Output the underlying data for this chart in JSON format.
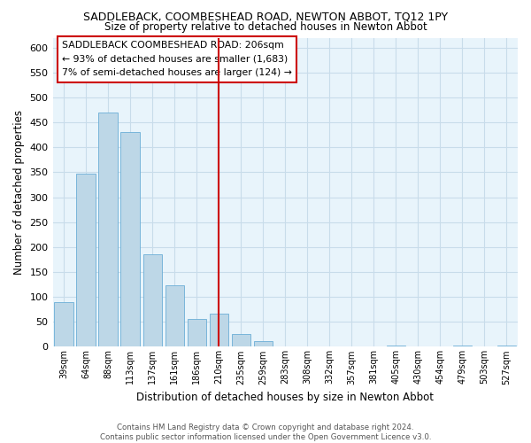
{
  "title": "SADDLEBACK, COOMBESHEAD ROAD, NEWTON ABBOT, TQ12 1PY",
  "subtitle": "Size of property relative to detached houses in Newton Abbot",
  "xlabel": "Distribution of detached houses by size in Newton Abbot",
  "ylabel": "Number of detached properties",
  "bar_labels": [
    "39sqm",
    "64sqm",
    "88sqm",
    "113sqm",
    "137sqm",
    "161sqm",
    "186sqm",
    "210sqm",
    "235sqm",
    "259sqm",
    "283sqm",
    "308sqm",
    "332sqm",
    "357sqm",
    "381sqm",
    "405sqm",
    "430sqm",
    "454sqm",
    "479sqm",
    "503sqm",
    "527sqm"
  ],
  "bar_values": [
    90,
    348,
    470,
    430,
    185,
    123,
    56,
    67,
    25,
    12,
    0,
    0,
    0,
    0,
    0,
    2,
    0,
    0,
    2,
    0,
    2
  ],
  "bar_color": "#bdd7e7",
  "bar_edge_color": "#6aaed6",
  "highlight_color": "#cc0000",
  "vline_bar_index": 7,
  "ylim": [
    0,
    620
  ],
  "yticks": [
    0,
    50,
    100,
    150,
    200,
    250,
    300,
    350,
    400,
    450,
    500,
    550,
    600
  ],
  "annotation_title": "SADDLEBACK COOMBESHEAD ROAD: 206sqm",
  "annotation_line1": "← 93% of detached houses are smaller (1,683)",
  "annotation_line2": "7% of semi-detached houses are larger (124) →",
  "footer_line1": "Contains HM Land Registry data © Crown copyright and database right 2024.",
  "footer_line2": "Contains public sector information licensed under the Open Government Licence v3.0.",
  "background_color": "#ffffff",
  "plot_bg_color": "#e8f4fb",
  "grid_color": "#c8dcea"
}
